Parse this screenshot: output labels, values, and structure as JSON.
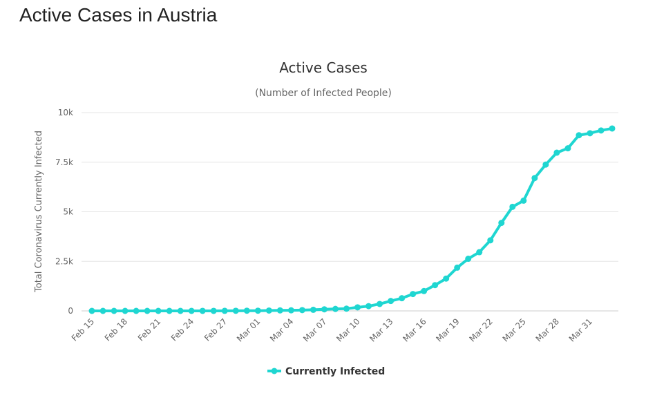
{
  "page": {
    "heading": "Active Cases in Austria"
  },
  "chart_data": {
    "type": "line",
    "title": "Active Cases",
    "subtitle": "(Number of Infected People)",
    "xlabel": "",
    "ylabel": "Total Coronavirus Currently Infected",
    "ylim": [
      0,
      10000
    ],
    "yticks": [
      0,
      2500,
      5000,
      7500,
      10000
    ],
    "ytick_labels": [
      "0",
      "2.5k",
      "5k",
      "7.5k",
      "10k"
    ],
    "grid": "horizontal",
    "legend_position": "bottom-center",
    "color": "#1FD6D1",
    "categories": [
      "Feb 15",
      "Feb 16",
      "Feb 17",
      "Feb 18",
      "Feb 19",
      "Feb 20",
      "Feb 21",
      "Feb 22",
      "Feb 23",
      "Feb 24",
      "Feb 25",
      "Feb 26",
      "Feb 27",
      "Feb 28",
      "Feb 29",
      "Mar 01",
      "Mar 02",
      "Mar 03",
      "Mar 04",
      "Mar 05",
      "Mar 06",
      "Mar 07",
      "Mar 08",
      "Mar 09",
      "Mar 10",
      "Mar 11",
      "Mar 12",
      "Mar 13",
      "Mar 14",
      "Mar 15",
      "Mar 16",
      "Mar 17",
      "Mar 18",
      "Mar 19",
      "Mar 20",
      "Mar 21",
      "Mar 22",
      "Mar 23",
      "Mar 24",
      "Mar 25",
      "Mar 26",
      "Mar 27",
      "Mar 28",
      "Mar 29",
      "Mar 30",
      "Mar 31",
      "Apr 01",
      "Apr 02"
    ],
    "tick_labels": [
      "Feb 15",
      "Feb 18",
      "Feb 21",
      "Feb 24",
      "Feb 27",
      "Mar 01",
      "Mar 04",
      "Mar 07",
      "Mar 10",
      "Mar 13",
      "Mar 16",
      "Mar 19",
      "Mar 22",
      "Mar 25",
      "Mar 28",
      "Mar 31"
    ],
    "series": [
      {
        "name": "Currently Infected",
        "values": [
          0,
          0,
          0,
          0,
          0,
          0,
          0,
          0,
          0,
          0,
          2,
          2,
          3,
          5,
          9,
          10,
          18,
          24,
          29,
          41,
          55,
          79,
          99,
          112,
          180,
          240,
          350,
          500,
          640,
          850,
          1000,
          1300,
          1630,
          2180,
          2630,
          2960,
          3560,
          4440,
          5250,
          5560,
          6700,
          7380,
          7980,
          8200,
          8860,
          8960,
          9100,
          9200
        ]
      }
    ]
  }
}
